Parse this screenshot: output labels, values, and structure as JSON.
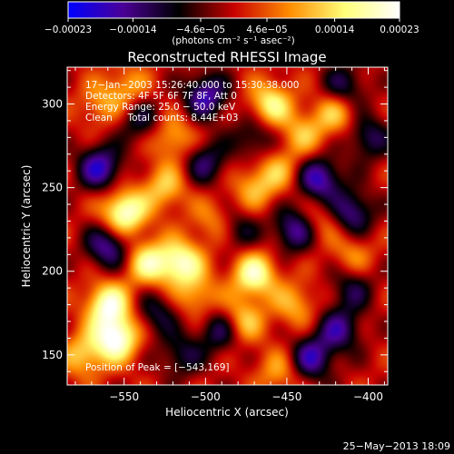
{
  "chart_data": {
    "type": "heatmap",
    "title": "Reconstructed RHESSI Image",
    "xlabel": "Heliocentric X (arcsec)",
    "ylabel": "Heliocentric Y (arcsec)",
    "xlim": [
      -585,
      -388
    ],
    "ylim": [
      132,
      322
    ],
    "x_ticks": [
      -550,
      -500,
      -450,
      -400
    ],
    "x_tick_labels": [
      "−550",
      "−500",
      "−450",
      "−400"
    ],
    "y_ticks": [
      150,
      200,
      250,
      300
    ],
    "y_tick_labels": [
      "150",
      "200",
      "250",
      "300"
    ],
    "colorbar": {
      "range": [
        -0.00023,
        0.00023
      ],
      "ticks": [
        -0.00023,
        -0.00014,
        -4.6e-05,
        4.6e-05,
        0.00014,
        0.00023
      ],
      "tick_labels": [
        "−0.00023",
        "−0.00014",
        "−4.6e−05",
        "4.6e−05",
        "0.00014",
        "0.00023"
      ],
      "unit_label": "(photons cm⁻² s⁻¹ asec⁻²)",
      "colormap": [
        "#0000ff",
        "#4b0096",
        "#000000",
        "#c80000",
        "#ff8c00",
        "#ffff78",
        "#ffffff"
      ]
    },
    "annotations": [
      "17−Jan−2003 15:26:40.000 to 15:30:38.000",
      "Detectors: 4F 5F 6F 7F 8F, Att 0",
      "Energy Range: 25.0 − 50.0 keV",
      "Clean     Total counts: 8.44E+03"
    ],
    "peak_label": "Position of Peak = [−543,169]",
    "peak": [
      -543,
      169
    ],
    "timestamp": "25−May−2013 18:09",
    "sources": [
      {
        "x": -560,
        "y": 180,
        "value": 0.0002
      },
      {
        "x": -555,
        "y": 160,
        "value": 0.00023
      },
      {
        "x": -550,
        "y": 235,
        "value": 0.00022
      },
      {
        "x": -535,
        "y": 205,
        "value": 0.00016
      },
      {
        "x": -515,
        "y": 205,
        "value": 0.00019
      },
      {
        "x": -505,
        "y": 185,
        "value": 0.0001
      },
      {
        "x": -525,
        "y": 250,
        "value": 0.00012
      },
      {
        "x": -520,
        "y": 280,
        "value": 0.00011
      },
      {
        "x": -470,
        "y": 198,
        "value": 0.00019
      },
      {
        "x": -478,
        "y": 170,
        "value": 0.00014
      },
      {
        "x": -460,
        "y": 300,
        "value": 0.00016
      },
      {
        "x": -470,
        "y": 250,
        "value": 0.0001
      },
      {
        "x": -455,
        "y": 260,
        "value": 9e-05
      },
      {
        "x": -440,
        "y": 282,
        "value": 0.0001
      },
      {
        "x": -420,
        "y": 295,
        "value": 0.00012
      },
      {
        "x": -445,
        "y": 180,
        "value": 0.0001
      },
      {
        "x": -430,
        "y": 230,
        "value": 8e-05
      },
      {
        "x": -410,
        "y": 210,
        "value": 8e-05
      },
      {
        "x": -455,
        "y": 140,
        "value": 9e-05
      },
      {
        "x": -565,
        "y": 300,
        "value": 8e-05
      },
      {
        "x": -548,
        "y": 310,
        "value": 9e-05
      },
      {
        "x": -495,
        "y": 230,
        "value": 8e-05
      },
      {
        "x": -575,
        "y": 150,
        "value": 0.00012
      },
      {
        "x": -560,
        "y": 215,
        "value": -0.00016
      },
      {
        "x": -565,
        "y": 262,
        "value": -0.00018
      },
      {
        "x": -500,
        "y": 305,
        "value": -0.00017
      },
      {
        "x": -445,
        "y": 225,
        "value": -0.00016
      },
      {
        "x": -430,
        "y": 255,
        "value": -0.00018
      },
      {
        "x": -410,
        "y": 235,
        "value": -0.00015
      },
      {
        "x": -435,
        "y": 148,
        "value": -0.00016
      },
      {
        "x": -418,
        "y": 165,
        "value": -0.00014
      },
      {
        "x": -490,
        "y": 165,
        "value": -0.00014
      },
      {
        "x": -500,
        "y": 265,
        "value": -0.00012
      },
      {
        "x": -415,
        "y": 310,
        "value": -0.00012
      },
      {
        "x": -530,
        "y": 175,
        "value": -0.0001
      },
      {
        "x": -470,
        "y": 280,
        "value": -0.0001
      },
      {
        "x": -400,
        "y": 280,
        "value": -0.00012
      },
      {
        "x": -540,
        "y": 290,
        "value": -0.0001
      },
      {
        "x": -480,
        "y": 225,
        "value": -9e-05
      },
      {
        "x": -410,
        "y": 190,
        "value": -0.0001
      },
      {
        "x": -515,
        "y": 150,
        "value": -0.0001
      }
    ]
  }
}
